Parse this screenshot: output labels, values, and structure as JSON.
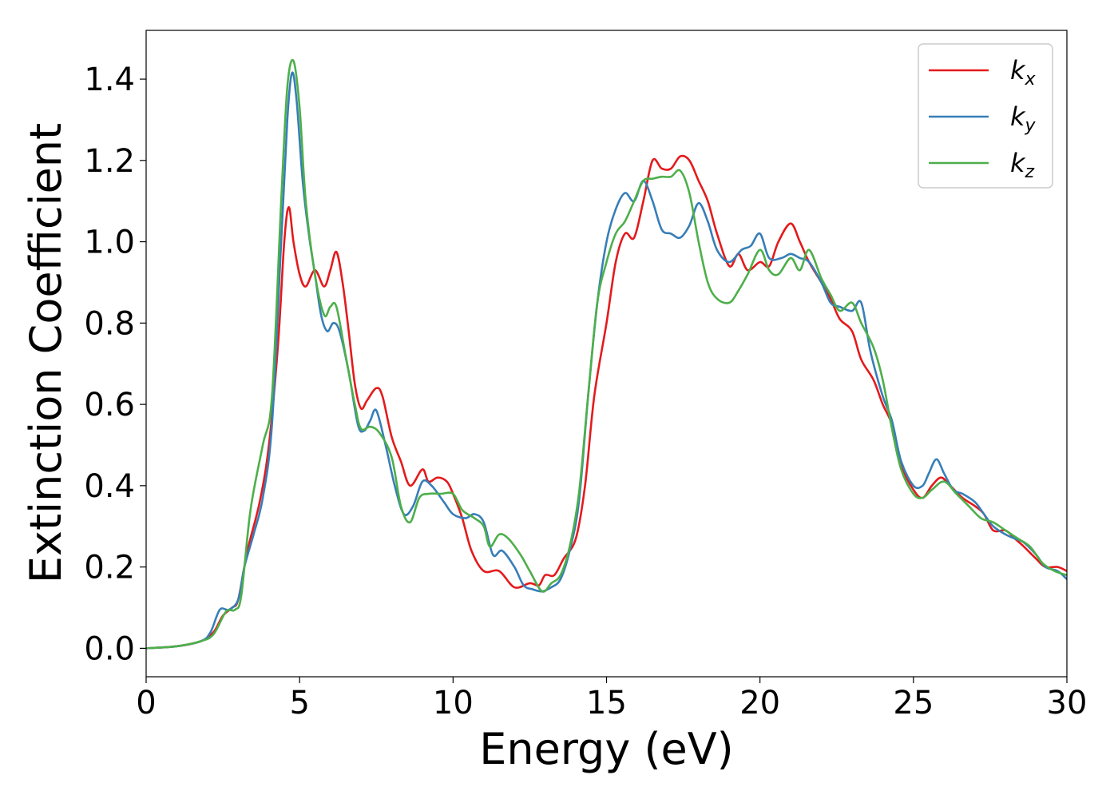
{
  "chart_data": {
    "type": "line",
    "xlabel": "Energy (eV)",
    "ylabel": "Extinction Coefficient",
    "xlim": [
      0,
      30
    ],
    "ylim": [
      -0.07,
      1.52
    ],
    "xticks": [
      0,
      5,
      10,
      15,
      20,
      25,
      30
    ],
    "xtick_labels": [
      "0",
      "5",
      "10",
      "15",
      "20",
      "25",
      "30"
    ],
    "yticks": [
      0.0,
      0.2,
      0.4,
      0.6,
      0.8,
      1.0,
      1.2,
      1.4
    ],
    "ytick_labels": [
      "0.0",
      "0.2",
      "0.4",
      "0.6",
      "0.8",
      "1.0",
      "1.2",
      "1.4"
    ],
    "grid": false,
    "legend_position": "top-right",
    "series": [
      {
        "name": "k",
        "subscript": "x",
        "color": "#e41a1c",
        "points": [
          [
            0,
            0
          ],
          [
            1,
            0.005
          ],
          [
            1.8,
            0.018
          ],
          [
            2.2,
            0.04
          ],
          [
            2.5,
            0.08
          ],
          [
            2.8,
            0.1
          ],
          [
            3.0,
            0.12
          ],
          [
            3.3,
            0.24
          ],
          [
            3.7,
            0.36
          ],
          [
            4.0,
            0.5
          ],
          [
            4.3,
            0.75
          ],
          [
            4.5,
            1.0
          ],
          [
            4.65,
            1.085
          ],
          [
            4.8,
            1.0
          ],
          [
            5.0,
            0.92
          ],
          [
            5.2,
            0.89
          ],
          [
            5.5,
            0.93
          ],
          [
            5.8,
            0.89
          ],
          [
            6.0,
            0.93
          ],
          [
            6.2,
            0.975
          ],
          [
            6.4,
            0.9
          ],
          [
            6.6,
            0.78
          ],
          [
            6.8,
            0.65
          ],
          [
            7.0,
            0.59
          ],
          [
            7.2,
            0.61
          ],
          [
            7.5,
            0.64
          ],
          [
            7.7,
            0.62
          ],
          [
            8.0,
            0.52
          ],
          [
            8.3,
            0.46
          ],
          [
            8.6,
            0.4
          ],
          [
            9.0,
            0.44
          ],
          [
            9.2,
            0.41
          ],
          [
            9.5,
            0.42
          ],
          [
            9.8,
            0.41
          ],
          [
            10.0,
            0.38
          ],
          [
            10.3,
            0.32
          ],
          [
            10.6,
            0.24
          ],
          [
            11.0,
            0.19
          ],
          [
            11.5,
            0.19
          ],
          [
            12.0,
            0.15
          ],
          [
            12.5,
            0.16
          ],
          [
            12.8,
            0.155
          ],
          [
            13.0,
            0.18
          ],
          [
            13.3,
            0.18
          ],
          [
            13.6,
            0.22
          ],
          [
            14.0,
            0.27
          ],
          [
            14.3,
            0.4
          ],
          [
            14.6,
            0.62
          ],
          [
            15.0,
            0.8
          ],
          [
            15.3,
            0.95
          ],
          [
            15.6,
            1.02
          ],
          [
            15.9,
            1.01
          ],
          [
            16.2,
            1.1
          ],
          [
            16.5,
            1.2
          ],
          [
            16.8,
            1.18
          ],
          [
            17.1,
            1.18
          ],
          [
            17.4,
            1.21
          ],
          [
            17.7,
            1.2
          ],
          [
            18.0,
            1.15
          ],
          [
            18.3,
            1.1
          ],
          [
            18.6,
            1.02
          ],
          [
            19.0,
            0.94
          ],
          [
            19.3,
            0.97
          ],
          [
            19.6,
            0.93
          ],
          [
            20.0,
            0.95
          ],
          [
            20.3,
            0.94
          ],
          [
            20.6,
            1.0
          ],
          [
            21.0,
            1.045
          ],
          [
            21.3,
            1.0
          ],
          [
            21.6,
            0.95
          ],
          [
            22.0,
            0.9
          ],
          [
            22.3,
            0.86
          ],
          [
            22.6,
            0.81
          ],
          [
            23.0,
            0.78
          ],
          [
            23.3,
            0.71
          ],
          [
            23.7,
            0.66
          ],
          [
            24.0,
            0.6
          ],
          [
            24.3,
            0.55
          ],
          [
            24.6,
            0.45
          ],
          [
            25.0,
            0.39
          ],
          [
            25.3,
            0.37
          ],
          [
            25.6,
            0.4
          ],
          [
            25.9,
            0.42
          ],
          [
            26.2,
            0.4
          ],
          [
            26.6,
            0.37
          ],
          [
            27.0,
            0.35
          ],
          [
            27.3,
            0.33
          ],
          [
            27.6,
            0.29
          ],
          [
            28.0,
            0.29
          ],
          [
            28.3,
            0.27
          ],
          [
            28.6,
            0.25
          ],
          [
            29.0,
            0.22
          ],
          [
            29.3,
            0.2
          ],
          [
            29.7,
            0.2
          ],
          [
            30.0,
            0.19
          ]
        ]
      },
      {
        "name": "k",
        "subscript": "y",
        "color": "#377eb8",
        "points": [
          [
            0,
            0
          ],
          [
            1,
            0.005
          ],
          [
            1.8,
            0.018
          ],
          [
            2.1,
            0.04
          ],
          [
            2.4,
            0.095
          ],
          [
            2.7,
            0.095
          ],
          [
            3.0,
            0.12
          ],
          [
            3.2,
            0.2
          ],
          [
            3.5,
            0.28
          ],
          [
            3.8,
            0.37
          ],
          [
            4.1,
            0.55
          ],
          [
            4.4,
            1.0
          ],
          [
            4.6,
            1.3
          ],
          [
            4.75,
            1.415
          ],
          [
            4.9,
            1.35
          ],
          [
            5.1,
            1.15
          ],
          [
            5.3,
            1.02
          ],
          [
            5.5,
            0.92
          ],
          [
            5.7,
            0.82
          ],
          [
            5.9,
            0.78
          ],
          [
            6.1,
            0.8
          ],
          [
            6.3,
            0.78
          ],
          [
            6.6,
            0.68
          ],
          [
            6.9,
            0.55
          ],
          [
            7.1,
            0.535
          ],
          [
            7.3,
            0.56
          ],
          [
            7.5,
            0.585
          ],
          [
            7.8,
            0.5
          ],
          [
            8.1,
            0.4
          ],
          [
            8.4,
            0.33
          ],
          [
            8.7,
            0.35
          ],
          [
            9.0,
            0.41
          ],
          [
            9.3,
            0.4
          ],
          [
            9.7,
            0.36
          ],
          [
            10.0,
            0.33
          ],
          [
            10.4,
            0.32
          ],
          [
            10.7,
            0.33
          ],
          [
            11.0,
            0.31
          ],
          [
            11.3,
            0.23
          ],
          [
            11.6,
            0.24
          ],
          [
            12.0,
            0.2
          ],
          [
            12.3,
            0.155
          ],
          [
            12.6,
            0.145
          ],
          [
            12.9,
            0.14
          ],
          [
            13.2,
            0.15
          ],
          [
            13.5,
            0.17
          ],
          [
            13.8,
            0.24
          ],
          [
            14.1,
            0.36
          ],
          [
            14.4,
            0.62
          ],
          [
            14.7,
            0.85
          ],
          [
            15.0,
            1.0
          ],
          [
            15.3,
            1.08
          ],
          [
            15.6,
            1.12
          ],
          [
            15.9,
            1.1
          ],
          [
            16.2,
            1.15
          ],
          [
            16.5,
            1.1
          ],
          [
            16.8,
            1.03
          ],
          [
            17.1,
            1.02
          ],
          [
            17.4,
            1.01
          ],
          [
            17.7,
            1.04
          ],
          [
            18.0,
            1.095
          ],
          [
            18.3,
            1.05
          ],
          [
            18.6,
            0.98
          ],
          [
            19.0,
            0.95
          ],
          [
            19.4,
            0.98
          ],
          [
            19.7,
            0.99
          ],
          [
            20.0,
            1.02
          ],
          [
            20.3,
            0.96
          ],
          [
            20.7,
            0.96
          ],
          [
            21.0,
            0.97
          ],
          [
            21.3,
            0.96
          ],
          [
            21.6,
            0.95
          ],
          [
            22.0,
            0.9
          ],
          [
            22.3,
            0.85
          ],
          [
            22.6,
            0.84
          ],
          [
            23.0,
            0.83
          ],
          [
            23.3,
            0.85
          ],
          [
            23.6,
            0.73
          ],
          [
            24.0,
            0.62
          ],
          [
            24.3,
            0.56
          ],
          [
            24.6,
            0.46
          ],
          [
            25.0,
            0.4
          ],
          [
            25.3,
            0.4
          ],
          [
            25.5,
            0.43
          ],
          [
            25.75,
            0.465
          ],
          [
            26.0,
            0.43
          ],
          [
            26.3,
            0.39
          ],
          [
            26.6,
            0.38
          ],
          [
            27.0,
            0.36
          ],
          [
            27.3,
            0.33
          ],
          [
            27.6,
            0.3
          ],
          [
            28.0,
            0.28
          ],
          [
            28.3,
            0.27
          ],
          [
            28.6,
            0.26
          ],
          [
            29.0,
            0.23
          ],
          [
            29.3,
            0.2
          ],
          [
            29.7,
            0.19
          ],
          [
            30.0,
            0.17
          ]
        ]
      },
      {
        "name": "k",
        "subscript": "z",
        "color": "#4daf4a",
        "points": [
          [
            0,
            0
          ],
          [
            1,
            0.005
          ],
          [
            1.8,
            0.018
          ],
          [
            2.2,
            0.035
          ],
          [
            2.6,
            0.09
          ],
          [
            2.9,
            0.095
          ],
          [
            3.1,
            0.13
          ],
          [
            3.4,
            0.34
          ],
          [
            3.8,
            0.5
          ],
          [
            4.1,
            0.62
          ],
          [
            4.4,
            1.1
          ],
          [
            4.6,
            1.38
          ],
          [
            4.8,
            1.445
          ],
          [
            5.0,
            1.33
          ],
          [
            5.2,
            1.1
          ],
          [
            5.5,
            0.92
          ],
          [
            5.8,
            0.82
          ],
          [
            6.0,
            0.84
          ],
          [
            6.2,
            0.84
          ],
          [
            6.5,
            0.72
          ],
          [
            6.8,
            0.6
          ],
          [
            7.0,
            0.54
          ],
          [
            7.3,
            0.545
          ],
          [
            7.6,
            0.53
          ],
          [
            8.0,
            0.47
          ],
          [
            8.3,
            0.35
          ],
          [
            8.6,
            0.31
          ],
          [
            8.9,
            0.37
          ],
          [
            9.2,
            0.38
          ],
          [
            9.6,
            0.38
          ],
          [
            10.0,
            0.38
          ],
          [
            10.3,
            0.34
          ],
          [
            10.7,
            0.32
          ],
          [
            11.0,
            0.3
          ],
          [
            11.2,
            0.25
          ],
          [
            11.5,
            0.28
          ],
          [
            11.8,
            0.27
          ],
          [
            12.2,
            0.23
          ],
          [
            12.5,
            0.19
          ],
          [
            12.9,
            0.14
          ],
          [
            13.2,
            0.16
          ],
          [
            13.5,
            0.18
          ],
          [
            13.8,
            0.25
          ],
          [
            14.1,
            0.38
          ],
          [
            14.4,
            0.62
          ],
          [
            14.7,
            0.85
          ],
          [
            15.0,
            0.95
          ],
          [
            15.3,
            1.02
          ],
          [
            15.6,
            1.05
          ],
          [
            15.9,
            1.1
          ],
          [
            16.2,
            1.15
          ],
          [
            16.5,
            1.155
          ],
          [
            16.8,
            1.16
          ],
          [
            17.1,
            1.16
          ],
          [
            17.4,
            1.175
          ],
          [
            17.7,
            1.12
          ],
          [
            18.0,
            1.0
          ],
          [
            18.3,
            0.9
          ],
          [
            18.6,
            0.86
          ],
          [
            19.0,
            0.85
          ],
          [
            19.3,
            0.88
          ],
          [
            19.6,
            0.92
          ],
          [
            20.0,
            0.98
          ],
          [
            20.3,
            0.93
          ],
          [
            20.6,
            0.92
          ],
          [
            21.0,
            0.96
          ],
          [
            21.3,
            0.93
          ],
          [
            21.6,
            0.98
          ],
          [
            22.0,
            0.91
          ],
          [
            22.3,
            0.87
          ],
          [
            22.6,
            0.83
          ],
          [
            23.0,
            0.85
          ],
          [
            23.3,
            0.8
          ],
          [
            23.7,
            0.74
          ],
          [
            24.0,
            0.66
          ],
          [
            24.3,
            0.54
          ],
          [
            24.6,
            0.44
          ],
          [
            25.0,
            0.38
          ],
          [
            25.3,
            0.37
          ],
          [
            25.6,
            0.39
          ],
          [
            26.0,
            0.41
          ],
          [
            26.4,
            0.38
          ],
          [
            26.8,
            0.35
          ],
          [
            27.2,
            0.32
          ],
          [
            27.6,
            0.31
          ],
          [
            28.0,
            0.29
          ],
          [
            28.4,
            0.27
          ],
          [
            28.8,
            0.25
          ],
          [
            29.2,
            0.21
          ],
          [
            29.6,
            0.19
          ],
          [
            30.0,
            0.18
          ]
        ]
      }
    ]
  }
}
